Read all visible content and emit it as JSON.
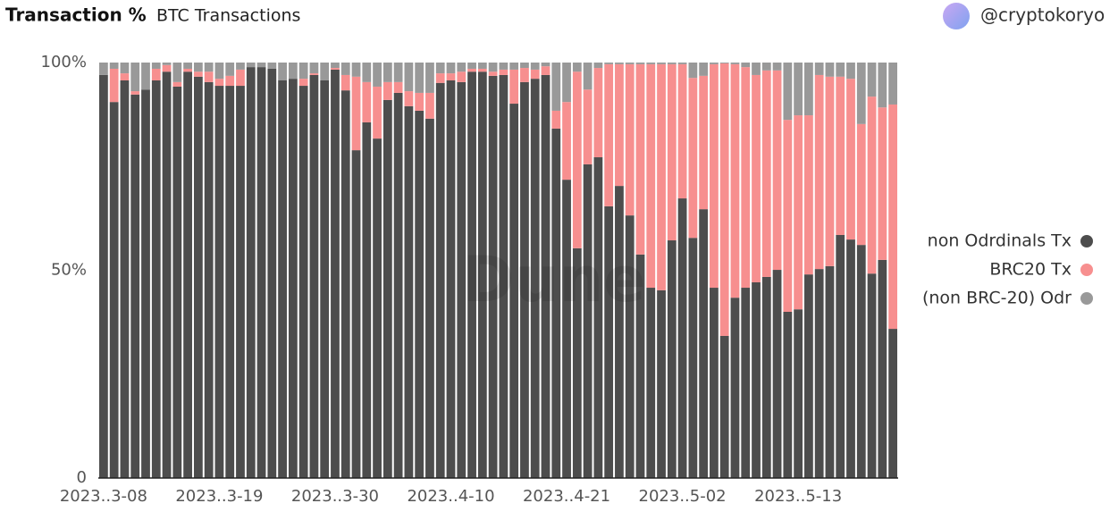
{
  "header": {
    "title": "Transaction %",
    "subtitle": "BTC Transactions",
    "author": "@cryptokoryo"
  },
  "chart_data": {
    "type": "stacked-bar",
    "watermark": "Dune",
    "categories": [
      "2023..3-08",
      null,
      null,
      null,
      null,
      null,
      null,
      null,
      null,
      null,
      null,
      "2023..3-19",
      null,
      null,
      null,
      null,
      null,
      null,
      null,
      null,
      null,
      null,
      "2023..3-30",
      null,
      null,
      null,
      null,
      null,
      null,
      null,
      null,
      null,
      null,
      "2023..4-10",
      null,
      null,
      null,
      null,
      null,
      null,
      null,
      null,
      null,
      null,
      "2023..4-21",
      null,
      null,
      null,
      null,
      null,
      null,
      null,
      null,
      null,
      null,
      "2023..5-02",
      null,
      null,
      null,
      null,
      null,
      null,
      null,
      null,
      null,
      null,
      "2023..5-13",
      null,
      null,
      null,
      null,
      null,
      null,
      null,
      null,
      null
    ],
    "series": [
      {
        "name": "non Odrdinals Tx",
        "color": "#4d4d4d",
        "values": [
          97,
          90.5,
          95.7,
          92.3,
          93.5,
          95.7,
          97.8,
          94.2,
          97.8,
          96.6,
          95.3,
          94.4,
          94.4,
          94.4,
          98.9,
          98.9,
          98.5,
          95.7,
          96.1,
          94.4,
          97,
          95.7,
          98.3,
          93.3,
          78.9,
          85.6,
          81.7,
          91,
          92.7,
          89.5,
          88.4,
          86.5,
          95.1,
          95.7,
          95.3,
          97.8,
          97.8,
          96.8,
          97,
          90.1,
          95.3,
          96.1,
          97,
          84.1,
          71.8,
          55.3,
          75.5,
          77.2,
          65.4,
          70.3,
          63.2,
          53.8,
          45.8,
          45.2,
          57.2,
          67.3,
          57.8,
          64.7,
          45.8,
          34.2,
          43.4,
          45.8,
          47.1,
          48.4,
          50.1,
          40,
          40.6,
          49,
          50.3,
          51,
          58.5,
          57.4,
          56.1,
          49.2,
          52.5,
          35.9
        ]
      },
      {
        "name": "BRC20 Tx",
        "color": "#f78f8f",
        "values": [
          0,
          8,
          1.7,
          0.8,
          0,
          2.8,
          1.6,
          1.1,
          0.7,
          1.2,
          2.5,
          1.7,
          2.4,
          3.9,
          0,
          0,
          0,
          0,
          0,
          1.7,
          0.4,
          0,
          0.4,
          3.7,
          17.7,
          9.7,
          12.5,
          4.3,
          2.6,
          3.6,
          4.3,
          6.2,
          2.3,
          1.7,
          2.5,
          0.7,
          0.7,
          1,
          1.3,
          8.2,
          3.4,
          2.2,
          2.1,
          4.3,
          18.7,
          42.5,
          18,
          21.5,
          34.2,
          29.3,
          36.4,
          45.8,
          53.8,
          54.4,
          42.4,
          32.3,
          38.5,
          32.1,
          53.8,
          65.6,
          56.2,
          53.1,
          49.9,
          49.7,
          48,
          46.2,
          46.7,
          38.3,
          46.7,
          45.6,
          38.1,
          38.7,
          29.1,
          42.6,
          36.7,
          54
        ]
      },
      {
        "name": "(non BRC-20) Odr",
        "color": "#999999",
        "values": [
          3,
          1.5,
          2.6,
          6.9,
          6.5,
          1.5,
          0.6,
          4.7,
          1.5,
          2.2,
          2.2,
          3.9,
          3.2,
          1.7,
          1.1,
          1.1,
          1.5,
          4.3,
          3.9,
          3.9,
          2.6,
          4.3,
          1.3,
          3,
          3.4,
          4.7,
          5.8,
          4.7,
          4.7,
          6.9,
          7.3,
          7.3,
          2.6,
          2.6,
          2.2,
          1.5,
          1.5,
          2.2,
          1.7,
          1.7,
          1.3,
          1.7,
          0.9,
          11.6,
          9.5,
          2.2,
          6.5,
          1.3,
          0.4,
          0.4,
          0.4,
          0.4,
          0.4,
          0.4,
          0.4,
          0.4,
          3.7,
          3.2,
          0.4,
          0.2,
          0.4,
          1.1,
          3,
          1.9,
          1.9,
          13.8,
          12.7,
          12.7,
          3,
          3.4,
          3.4,
          3.9,
          14.8,
          8.2,
          10.8,
          10.1
        ]
      }
    ],
    "ylim": [
      0,
      100
    ],
    "yticks": [
      0,
      {
        "value": 50,
        "label": "50%"
      },
      {
        "value": 100,
        "label": "100%"
      }
    ],
    "legend": "right"
  }
}
